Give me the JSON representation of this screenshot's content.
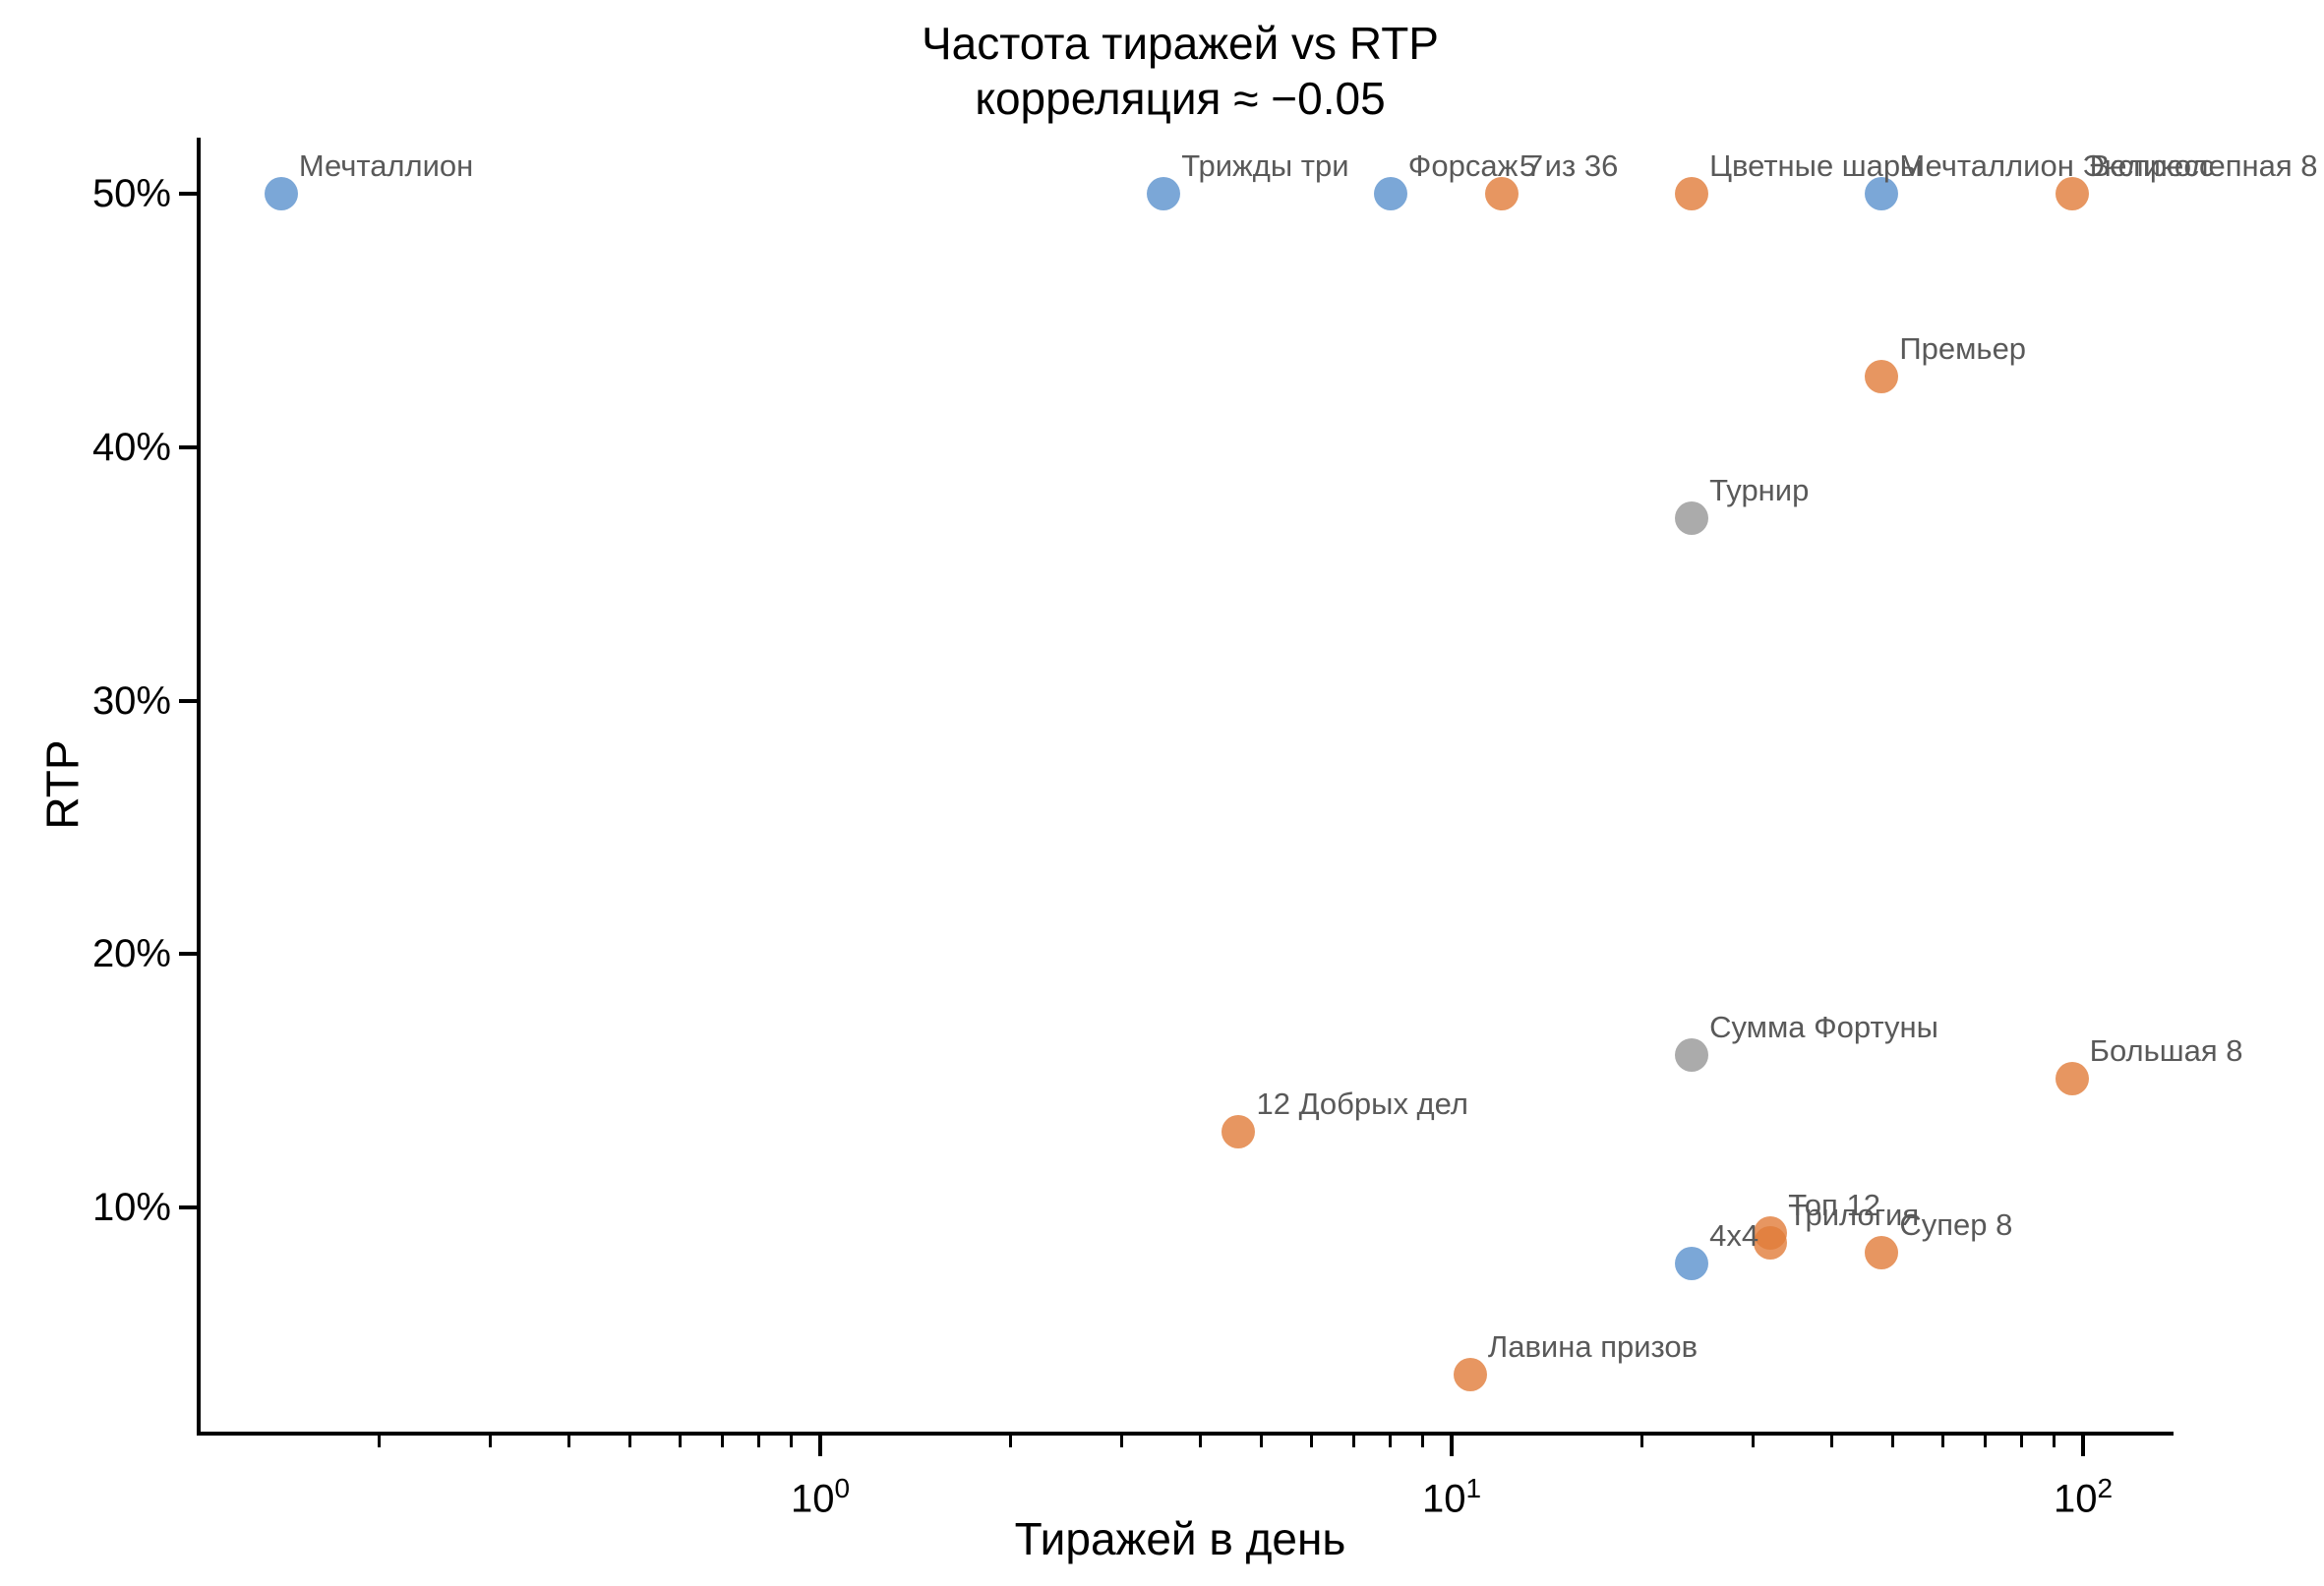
{
  "title": {
    "line1": "Частота тиражей vs RTP",
    "line2": "корреляция ≈ −0.05"
  },
  "axes": {
    "x": {
      "label": "Тиражей в день",
      "scale": "log",
      "major_ticks": [
        1,
        10,
        100
      ],
      "major_tick_labels": [
        {
          "base": "10",
          "exp": "0"
        },
        {
          "base": "10",
          "exp": "1"
        },
        {
          "base": "10",
          "exp": "2"
        }
      ],
      "minor_tick_values": [
        0.2,
        0.3,
        0.4,
        0.5,
        0.6,
        0.7,
        0.8,
        0.9,
        2,
        3,
        4,
        5,
        6,
        7,
        8,
        9,
        20,
        30,
        40,
        50,
        60,
        70,
        80,
        90
      ]
    },
    "y": {
      "label": "RTP",
      "ticks": [
        50,
        40,
        30,
        20,
        10
      ],
      "tick_labels": [
        "50%",
        "40%",
        "30%",
        "20%",
        "10%"
      ]
    }
  },
  "colors": {
    "blue": "#5a91cd",
    "orange": "#e17c3a",
    "gray": "#969696",
    "point_label_text": "#595959",
    "axis": "#000000"
  },
  "chart_data": {
    "type": "scatter",
    "title": "Частота тиражей vs RTP",
    "subtitle": "корреляция ≈ −0.05",
    "xlabel": "Тиражей в день",
    "ylabel": "RTP",
    "x_scale": "log",
    "y_scale": "linear",
    "grid": false,
    "legend": false,
    "x_range_per_day": [
      0.105,
      140
    ],
    "y_range_pct": [
      1,
      52.5
    ],
    "points": [
      {
        "name": "Мечталлион",
        "draws_per_day": 0.14,
        "rtp_pct": 50.0,
        "color": "blue"
      },
      {
        "name": "Трижды три",
        "draws_per_day": 3.5,
        "rtp_pct": 50.0,
        "color": "blue"
      },
      {
        "name": "Форсаж 7",
        "draws_per_day": 8,
        "rtp_pct": 50.0,
        "color": "blue"
      },
      {
        "name": "5 из 36",
        "draws_per_day": 12,
        "rtp_pct": 50.0,
        "color": "orange"
      },
      {
        "name": "Цветные шары",
        "draws_per_day": 24,
        "rtp_pct": 50.0,
        "color": "orange"
      },
      {
        "name": "Мечталлион Экспресс",
        "draws_per_day": 48,
        "rtp_pct": 50.0,
        "color": "blue"
      },
      {
        "name": "Великолепная 8",
        "draws_per_day": 96,
        "rtp_pct": 50.0,
        "color": "orange"
      },
      {
        "name": "Премьер",
        "draws_per_day": 48,
        "rtp_pct": 42.8,
        "color": "orange"
      },
      {
        "name": "Турнир",
        "draws_per_day": 24,
        "rtp_pct": 37.2,
        "color": "gray"
      },
      {
        "name": "Сумма Фортуны",
        "draws_per_day": 24,
        "rtp_pct": 16.0,
        "color": "gray"
      },
      {
        "name": "Большая 8",
        "draws_per_day": 96,
        "rtp_pct": 15.1,
        "color": "orange"
      },
      {
        "name": "12 Добрых дел",
        "draws_per_day": 4.6,
        "rtp_pct": 13.0,
        "color": "orange"
      },
      {
        "name": "Топ 12",
        "draws_per_day": 32,
        "rtp_pct": 9.0,
        "color": "orange"
      },
      {
        "name": "Трилогия",
        "draws_per_day": 32,
        "rtp_pct": 8.6,
        "color": "orange"
      },
      {
        "name": "Супер 8",
        "draws_per_day": 48,
        "rtp_pct": 8.2,
        "color": "orange"
      },
      {
        "name": "4x4",
        "draws_per_day": 24,
        "rtp_pct": 7.8,
        "color": "blue"
      },
      {
        "name": "Лавина призов",
        "draws_per_day": 10.7,
        "rtp_pct": 3.4,
        "color": "orange"
      }
    ]
  }
}
